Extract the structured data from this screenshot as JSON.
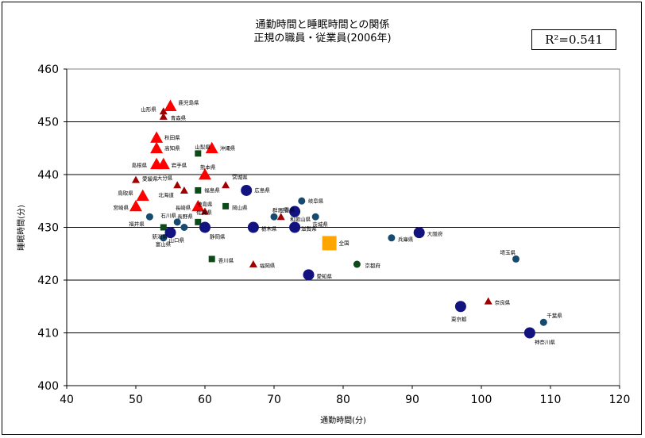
{
  "title_line1": "通勤時間と睡眠時間との関係",
  "title_line2": "正規の職員・従業員(2006年)",
  "r2_label": "R²=0.541",
  "colors": {
    "red_triangle": "#ff0000",
    "darkred_triangle": "#a00000",
    "green_square": "#0d4a1a",
    "navy_circle_large": "#131380",
    "teal_circle_small": "#164a6e",
    "orange_square": "#ffa500",
    "gridline": "#000000"
  },
  "chart_data": {
    "type": "scatter",
    "title": "通勤時間と睡眠時間との関係 正規の職員・従業員(2006年)",
    "xlabel": "通勤時間(分)",
    "ylabel": "睡眠時間(分)",
    "xlim": [
      40,
      120
    ],
    "ylim": [
      400,
      460
    ],
    "xticks": [
      40,
      50,
      60,
      70,
      80,
      90,
      100,
      110,
      120
    ],
    "yticks": [
      400,
      410,
      420,
      430,
      440,
      450,
      460
    ],
    "horizontal_grid": true,
    "annotation": "R²=0.541",
    "points": [
      {
        "label": "鹿児島県",
        "x": 55,
        "y": 453,
        "marker": "tri-large"
      },
      {
        "label": "山形県",
        "x": 54,
        "y": 452,
        "marker": "tri-small"
      },
      {
        "label": "青森県",
        "x": 54,
        "y": 451,
        "marker": "tri-small"
      },
      {
        "label": "秋田県",
        "x": 53,
        "y": 447,
        "marker": "tri-large"
      },
      {
        "label": "高知県",
        "x": 53,
        "y": 445,
        "marker": "tri-large"
      },
      {
        "label": "山梨県",
        "x": 59,
        "y": 444,
        "marker": "square"
      },
      {
        "label": "沖縄県",
        "x": 61,
        "y": 445,
        "marker": "tri-large"
      },
      {
        "label": "島根県",
        "x": 53,
        "y": 442,
        "marker": "tri-large"
      },
      {
        "label": "岩手県",
        "x": 54,
        "y": 442,
        "marker": "tri-large"
      },
      {
        "label": "熊本県",
        "x": 60,
        "y": 440,
        "marker": "tri-large"
      },
      {
        "label": "愛媛県",
        "x": 50,
        "y": 439,
        "marker": "tri-small"
      },
      {
        "label": "宮城県",
        "x": 63,
        "y": 438,
        "marker": "tri-small"
      },
      {
        "label": "大分県",
        "x": 56,
        "y": 438,
        "marker": "tri-small"
      },
      {
        "label": "北海道",
        "x": 57,
        "y": 437,
        "marker": "tri-small"
      },
      {
        "label": "福島県",
        "x": 59,
        "y": 437,
        "marker": "square"
      },
      {
        "label": "広島県",
        "x": 66,
        "y": 437,
        "marker": "circle-large"
      },
      {
        "label": "鳥取県",
        "x": 51,
        "y": 436,
        "marker": "tri-large"
      },
      {
        "label": "岐阜県",
        "x": 74,
        "y": 435,
        "marker": "circle-small"
      },
      {
        "label": "宮崎県",
        "x": 50,
        "y": 434,
        "marker": "tri-large"
      },
      {
        "label": "長崎県",
        "x": 59,
        "y": 434,
        "marker": "tri-large"
      },
      {
        "label": "徳島県",
        "x": 60,
        "y": 433,
        "marker": "tri-small"
      },
      {
        "label": "岡山県",
        "x": 63,
        "y": 434,
        "marker": "square"
      },
      {
        "label": "石川県",
        "x": 52,
        "y": 432,
        "marker": "circle-small"
      },
      {
        "label": "長野県",
        "x": 56,
        "y": 431,
        "marker": "circle-small"
      },
      {
        "label": "佐賀県",
        "x": 59,
        "y": 431,
        "marker": "square"
      },
      {
        "label": "福井県",
        "x": 54,
        "y": 430,
        "marker": "square"
      },
      {
        "label": "新潟県",
        "x": 57,
        "y": 430,
        "marker": "circle-small"
      },
      {
        "label": "山口県",
        "x": 55,
        "y": 429,
        "marker": "circle-large"
      },
      {
        "label": "静岡県",
        "x": 60,
        "y": 430,
        "marker": "circle-large"
      },
      {
        "label": "富山県",
        "x": 54,
        "y": 428,
        "marker": "circle-small"
      },
      {
        "label": "三重県",
        "x": 71,
        "y": 432,
        "marker": "tri-small"
      },
      {
        "label": "群馬県",
        "x": 70,
        "y": 432,
        "marker": "circle-small"
      },
      {
        "label": "和歌山県",
        "x": 73,
        "y": 433,
        "marker": "circle-large"
      },
      {
        "label": "栃木県",
        "x": 67,
        "y": 430,
        "marker": "circle-large"
      },
      {
        "label": "滋賀県",
        "x": 73,
        "y": 430,
        "marker": "circle-large"
      },
      {
        "label": "茨城県",
        "x": 76,
        "y": 432,
        "marker": "circle-small"
      },
      {
        "label": "全国",
        "x": 78,
        "y": 427,
        "marker": "square-orange"
      },
      {
        "label": "香川県",
        "x": 61,
        "y": 424,
        "marker": "square"
      },
      {
        "label": "福岡県",
        "x": 67,
        "y": 423,
        "marker": "tri-small"
      },
      {
        "label": "京都府",
        "x": 82,
        "y": 423,
        "marker": "square-circle"
      },
      {
        "label": "愛知県",
        "x": 75,
        "y": 421,
        "marker": "circle-large"
      },
      {
        "label": "兵庫県",
        "x": 87,
        "y": 428,
        "marker": "circle-small"
      },
      {
        "label": "大阪府",
        "x": 91,
        "y": 429,
        "marker": "circle-large"
      },
      {
        "label": "埼玉県",
        "x": 105,
        "y": 424,
        "marker": "circle-small"
      },
      {
        "label": "東京都",
        "x": 97,
        "y": 415,
        "marker": "circle-large"
      },
      {
        "label": "奈良県",
        "x": 101,
        "y": 416,
        "marker": "tri-small"
      },
      {
        "label": "千葉県",
        "x": 109,
        "y": 412,
        "marker": "circle-small"
      },
      {
        "label": "神奈川県",
        "x": 107,
        "y": 410,
        "marker": "circle-large"
      }
    ]
  }
}
